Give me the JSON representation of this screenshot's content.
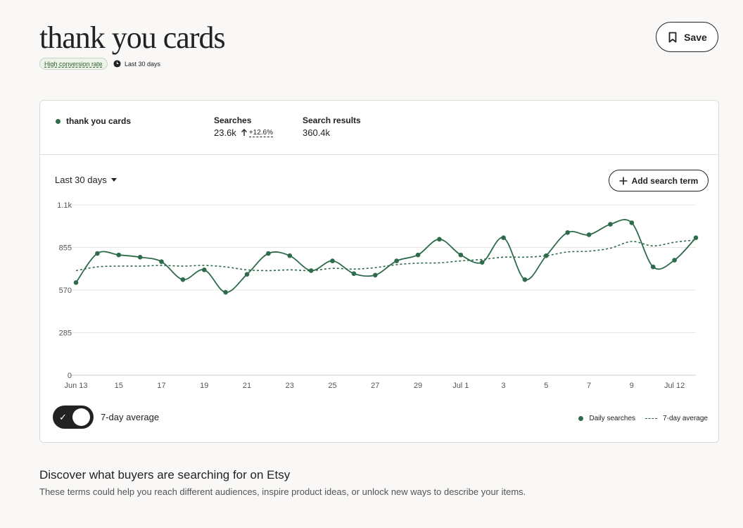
{
  "page": {
    "title": "thank you cards",
    "save_label": "Save",
    "badge": "High conversion rate",
    "period_tag": "Last 30 days"
  },
  "summary": {
    "term": "thank you cards",
    "searches_label": "Searches",
    "searches_value": "23.6k",
    "searches_change": "+12.6%",
    "results_label": "Search results",
    "results_value": "360.4k"
  },
  "controls": {
    "period_select": "Last 30 days",
    "add_term_label": "Add search term",
    "toggle_label": "7-day average",
    "toggle_on": true
  },
  "legend": {
    "daily": "Daily searches",
    "average": "7-day average"
  },
  "colors": {
    "series": "#2e6b4b",
    "grid": "#e8e6e2"
  },
  "chart_data": {
    "type": "line",
    "ylim": [
      0,
      1140
    ],
    "yticks": [
      "0",
      "285",
      "570",
      "855",
      "1.1k"
    ],
    "ytick_values": [
      0,
      285,
      570,
      855,
      1140
    ],
    "xtick_labels": [
      "Jun 13",
      "15",
      "17",
      "19",
      "21",
      "23",
      "25",
      "27",
      "29",
      "Jul 1",
      "3",
      "5",
      "7",
      "9",
      "Jul 12"
    ],
    "series": [
      {
        "name": "Daily searches",
        "style": "solid-markers",
        "values": [
          620,
          815,
          805,
          790,
          760,
          640,
          705,
          555,
          675,
          815,
          800,
          700,
          765,
          680,
          670,
          765,
          805,
          910,
          805,
          755,
          920,
          640,
          800,
          955,
          940,
          1010,
          1020,
          725,
          770,
          920
        ]
      },
      {
        "name": "7-day average",
        "style": "dashed",
        "values": [
          700,
          725,
          730,
          730,
          735,
          730,
          735,
          725,
          705,
          700,
          705,
          700,
          715,
          710,
          720,
          740,
          750,
          752,
          765,
          775,
          790,
          790,
          800,
          825,
          830,
          850,
          895,
          865,
          890,
          905
        ]
      }
    ]
  },
  "discover": {
    "title": "Discover what buyers are searching for on Etsy",
    "description": "These terms could help you reach different audiences, inspire product ideas, or unlock new ways to describe your items."
  }
}
